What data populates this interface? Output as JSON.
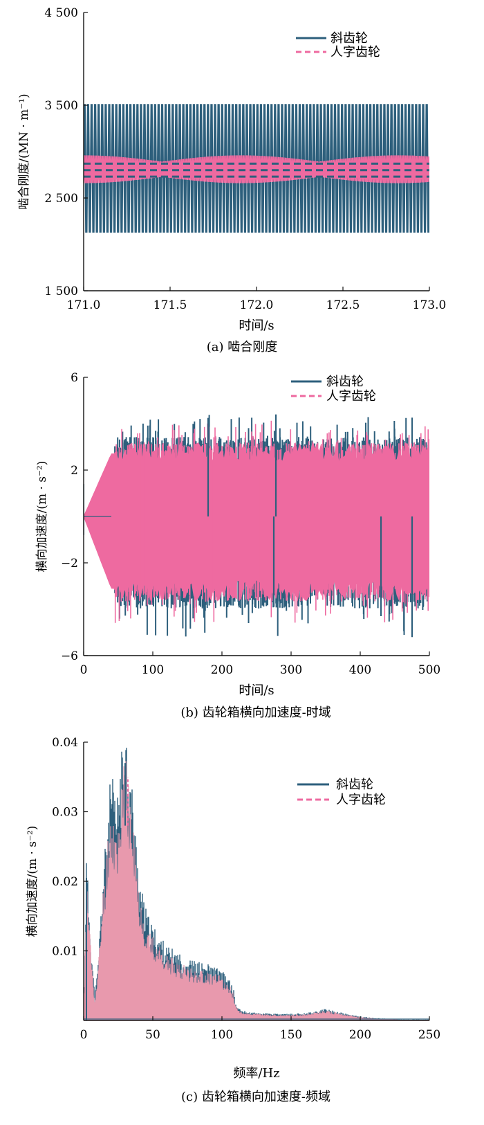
{
  "colors": {
    "helical": "#2d5f7c",
    "herringbone": "#ee6aa0",
    "herringbone_fill": "#e899ad",
    "axis": "#111111"
  },
  "chart_data": [
    {
      "panel": "a",
      "type": "line",
      "caption": "(a)   啮合刚度",
      "xlabel": "时间/s",
      "ylabel": "啮合刚度/(MN · m⁻¹)",
      "xlim": [
        171.0,
        173.0
      ],
      "ylim": [
        1500,
        4500
      ],
      "xticks": [
        "171.0",
        "171.5",
        "172.0",
        "172.5",
        "173.0"
      ],
      "xtick_values": [
        171.0,
        171.5,
        172.0,
        172.5,
        173.0
      ],
      "yticks": [
        "1 500",
        "2 500",
        "3 500",
        "4 500"
      ],
      "ytick_values": [
        1500,
        2500,
        3500,
        4500
      ],
      "legend_position": "top-right",
      "series": [
        {
          "name": "斜齿轮",
          "style": "solid",
          "cycles": 98,
          "min": 2030,
          "max": 3610
        },
        {
          "name": "人字齿轮",
          "style": "dashed",
          "cycles": 98,
          "min": 2660,
          "max": 2960
        }
      ]
    },
    {
      "panel": "b",
      "type": "line",
      "caption": "(b)   齿轮箱横向加速度-时域",
      "xlabel": "时间/s",
      "ylabel": "横向加速度/(m · s⁻²)",
      "xlim": [
        0,
        500
      ],
      "ylim": [
        -6,
        6
      ],
      "xticks": [
        "0",
        "100",
        "200",
        "300",
        "400",
        "500"
      ],
      "xtick_values": [
        0,
        100,
        200,
        300,
        400,
        500
      ],
      "yticks": [
        "−6",
        "−2",
        "2",
        "6"
      ],
      "ytick_values": [
        -6,
        -2,
        2,
        6
      ],
      "legend_position": "top-right",
      "series": [
        {
          "name": "斜齿轮",
          "style": "solid",
          "steady_min": -3.3,
          "steady_max": 2.9,
          "peak_max": 4.4,
          "peak_min": -5.2
        },
        {
          "name": "人字齿轮",
          "style": "dashed",
          "steady_min": -3.1,
          "steady_max": 2.7,
          "peak_max": 4.3,
          "peak_min": -5.0
        }
      ]
    },
    {
      "panel": "c",
      "type": "area",
      "caption": "(c)   齿轮箱横向加速度-频域",
      "xlabel": "频率/Hz",
      "ylabel": "横向加速度/(m · s⁻²)",
      "xlim": [
        0,
        250
      ],
      "ylim": [
        0,
        0.04
      ],
      "xticks": [
        "0",
        "50",
        "100",
        "150",
        "200",
        "250"
      ],
      "xtick_values": [
        0,
        50,
        100,
        150,
        200,
        250
      ],
      "yticks": [
        "0.01",
        "0.02",
        "0.03",
        "0.04"
      ],
      "ytick_values": [
        0.01,
        0.02,
        0.03,
        0.04
      ],
      "legend_position": "top-right",
      "envelope_x": [
        0,
        2,
        4,
        6,
        8,
        10,
        12,
        14,
        16,
        18,
        20,
        22,
        24,
        26,
        28,
        30,
        32,
        34,
        36,
        38,
        40,
        44,
        48,
        52,
        56,
        60,
        65,
        70,
        75,
        80,
        85,
        90,
        95,
        100,
        105,
        108,
        110,
        112,
        115,
        120,
        130,
        140,
        150,
        160,
        170,
        175,
        180,
        185,
        190,
        200,
        210,
        220,
        230,
        240,
        250
      ],
      "envelope_y": [
        0.0,
        0.02,
        0.014,
        0.008,
        0.003,
        0.006,
        0.012,
        0.018,
        0.022,
        0.027,
        0.03,
        0.028,
        0.026,
        0.031,
        0.033,
        0.037,
        0.034,
        0.03,
        0.027,
        0.022,
        0.018,
        0.014,
        0.012,
        0.011,
        0.01,
        0.009,
        0.0085,
        0.008,
        0.0075,
        0.0072,
        0.007,
        0.0068,
        0.0065,
        0.006,
        0.005,
        0.0042,
        0.002,
        0.0015,
        0.0012,
        0.001,
        0.0009,
        0.0008,
        0.0008,
        0.0009,
        0.0012,
        0.0014,
        0.0012,
        0.001,
        0.0008,
        0.0005,
        0.0003,
        0.0002,
        0.0001,
        0.0001,
        0.0001
      ],
      "series": [
        {
          "name": "斜齿轮",
          "style": "solid",
          "peak_hz": 30,
          "peak_value": 0.037
        },
        {
          "name": "人字齿轮",
          "style": "dashed",
          "peak_hz": 32,
          "peak_value": 0.035
        }
      ]
    }
  ]
}
